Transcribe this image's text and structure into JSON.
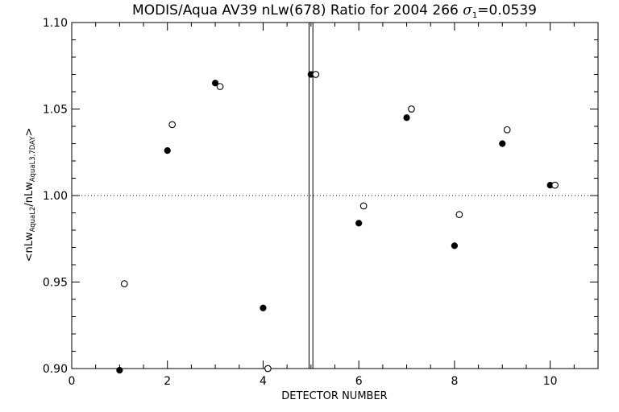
{
  "chart_data": {
    "type": "scatter",
    "title": {
      "prefix": "MODIS/Aqua AV39 nLw(678) Ratio for 2004 266 ",
      "sigma_symbol": "σ",
      "sigma_subscript": "1",
      "sigma_value": "=0.0539"
    },
    "xlabel": "DETECTOR NUMBER",
    "ylabel": {
      "open": "<nLw",
      "sub1": "AquaL2",
      "mid": "/nLw",
      "sub2": "AquaL3,7DAY",
      "close": ">"
    },
    "xlim": [
      0,
      11
    ],
    "ylim": [
      0.9,
      1.1
    ],
    "x_ticks": [
      0,
      2,
      4,
      6,
      8,
      10
    ],
    "x_tick_labels": [
      "0",
      "2",
      "4",
      "6",
      "8",
      "10"
    ],
    "y_ticks": [
      0.9,
      0.95,
      1.0,
      1.05,
      1.1
    ],
    "y_tick_labels": [
      "0.90",
      "0.95",
      "1.00",
      "1.05",
      "1.10"
    ],
    "reference_line": {
      "y": 1.0,
      "style": "dotted"
    },
    "vertical_lines": [
      4.96,
      5.04
    ],
    "grid": false,
    "series": [
      {
        "marker": "filled-circle",
        "color": "#000000",
        "x": [
          1,
          2,
          3,
          4,
          5,
          6,
          7,
          8,
          9,
          10
        ],
        "y": [
          0.899,
          1.026,
          1.065,
          0.935,
          1.07,
          0.984,
          1.045,
          0.971,
          1.03,
          1.006
        ]
      },
      {
        "marker": "open-circle",
        "color": "#000000",
        "x": [
          1.1,
          2.1,
          3.1,
          4.1,
          5.1,
          6.1,
          7.1,
          8.1,
          9.1,
          10.1
        ],
        "y": [
          0.949,
          1.041,
          1.063,
          0.9,
          1.07,
          0.994,
          1.05,
          0.989,
          1.038,
          1.006
        ]
      }
    ]
  }
}
